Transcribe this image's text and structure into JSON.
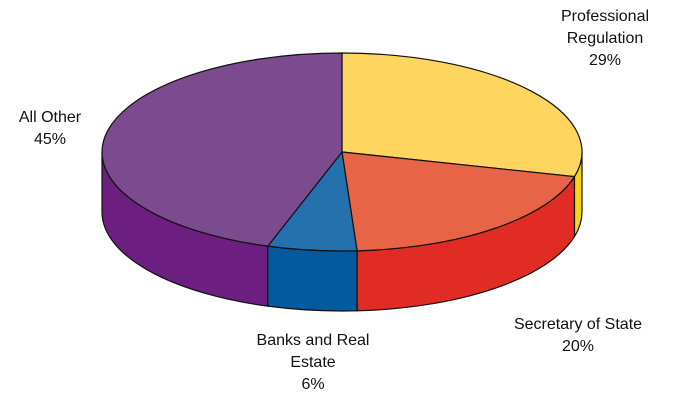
{
  "chart_data": {
    "type": "pie",
    "style": "3d",
    "title": "",
    "slices": [
      {
        "name": "Professional Regulation",
        "value": 29,
        "label_lines": [
          "Professional",
          "Regulation"
        ],
        "pct_label": "29%",
        "color": "#FDD55F",
        "side_color": "#F8D21B"
      },
      {
        "name": "Secretary of State",
        "value": 20,
        "label_lines": [
          "Secretary of State"
        ],
        "pct_label": "20%",
        "color": "#E76446",
        "side_color": "#E02C25"
      },
      {
        "name": "Banks and Real Estate",
        "value": 6,
        "label_lines": [
          "Banks and Real",
          "Estate"
        ],
        "pct_label": "6%",
        "color": "#2571AE",
        "side_color": "#035A9F"
      },
      {
        "name": "All Other",
        "value": 45,
        "label_lines": [
          "All Other"
        ],
        "pct_label": "45%",
        "color": "#7B4A8F",
        "side_color": "#6C1F80"
      }
    ]
  }
}
